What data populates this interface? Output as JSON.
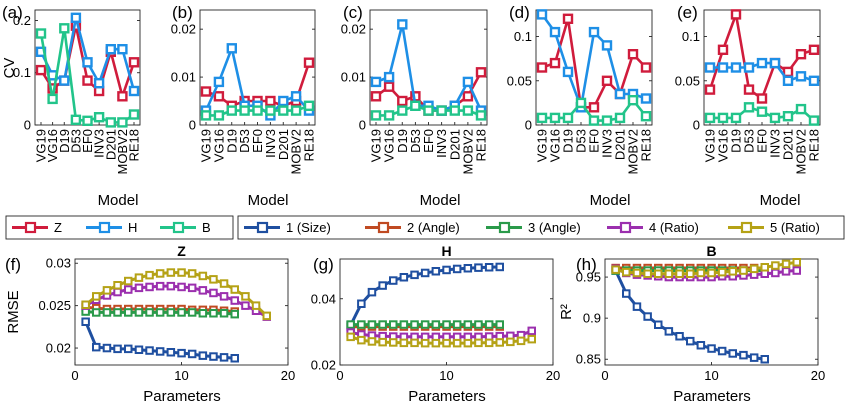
{
  "colors": {
    "Z": "#d01c3c",
    "H": "#1e8fe6",
    "B": "#22c48a",
    "s1": "#1f4fa0",
    "s2": "#c04a22",
    "s3": "#2a9a4a",
    "s4": "#9b2fae",
    "s5": "#b5a216"
  },
  "legends": {
    "top": [
      {
        "label": "Z",
        "color_key": "Z"
      },
      {
        "label": "H",
        "color_key": "H"
      },
      {
        "label": "B",
        "color_key": "B"
      }
    ],
    "bottom": [
      {
        "label": "1 (Size)",
        "color_key": "s1"
      },
      {
        "label": "2 (Angle)",
        "color_key": "s2"
      },
      {
        "label": "3 (Angle)",
        "color_key": "s3"
      },
      {
        "label": "4 (Ratio)",
        "color_key": "s4"
      },
      {
        "label": "5 (Ratio)",
        "color_key": "s5"
      }
    ]
  },
  "chart_data": [
    {
      "panel": "(a)",
      "type": "line",
      "title": "",
      "xlabel": "Model",
      "ylabel": "CV",
      "categories": [
        "VG19",
        "VG16",
        "D19",
        "D53",
        "EF0",
        "INV3",
        "D201",
        "MOBV2",
        "RE18"
      ],
      "ylim": [
        0,
        0.22
      ],
      "yticks": [
        0,
        0.1,
        0.2
      ],
      "ytick_labels": [
        "0",
        "0.1",
        "0.2"
      ],
      "series": [
        {
          "name": "Z",
          "color_key": "Z",
          "values": [
            0.105,
            0.07,
            0.085,
            0.19,
            0.085,
            0.065,
            0.14,
            0.055,
            0.12
          ]
        },
        {
          "name": "H",
          "color_key": "H",
          "values": [
            0.14,
            0.095,
            0.085,
            0.205,
            0.12,
            0.08,
            0.145,
            0.145,
            0.065
          ]
        },
        {
          "name": "B",
          "color_key": "B",
          "values": [
            0.175,
            0.05,
            0.185,
            0.01,
            0.008,
            0.015,
            0.005,
            0.005,
            0.02
          ]
        }
      ]
    },
    {
      "panel": "(b)",
      "type": "line",
      "title": "",
      "xlabel": "Model",
      "ylabel": "",
      "categories": [
        "VG19",
        "VG16",
        "D19",
        "D53",
        "EF0",
        "INV3",
        "D201",
        "MOBV2",
        "RE18"
      ],
      "ylim": [
        0,
        0.024
      ],
      "yticks": [
        0,
        0.01,
        0.02
      ],
      "ytick_labels": [
        "0",
        "0.01",
        "0.02"
      ],
      "series": [
        {
          "name": "Z",
          "color_key": "Z",
          "values": [
            0.007,
            0.006,
            0.004,
            0.005,
            0.005,
            0.005,
            0.004,
            0.005,
            0.013
          ]
        },
        {
          "name": "H",
          "color_key": "H",
          "values": [
            0.003,
            0.009,
            0.016,
            0.004,
            0.004,
            0.002,
            0.005,
            0.006,
            0.003
          ]
        },
        {
          "name": "B",
          "color_key": "B",
          "values": [
            0.002,
            0.002,
            0.003,
            0.003,
            0.003,
            0.003,
            0.003,
            0.003,
            0.004
          ]
        }
      ]
    },
    {
      "panel": "(c)",
      "type": "line",
      "title": "",
      "xlabel": "Model",
      "ylabel": "",
      "categories": [
        "VG19",
        "VG16",
        "D19",
        "D53",
        "EF0",
        "INV3",
        "D201",
        "MOBV2",
        "RE18"
      ],
      "ylim": [
        0,
        0.024
      ],
      "yticks": [
        0,
        0.01,
        0.02
      ],
      "ytick_labels": [
        "0",
        "0.01",
        "0.02"
      ],
      "series": [
        {
          "name": "Z",
          "color_key": "Z",
          "values": [
            0.006,
            0.008,
            0.005,
            0.006,
            0.003,
            0.003,
            0.004,
            0.006,
            0.011
          ]
        },
        {
          "name": "H",
          "color_key": "H",
          "values": [
            0.009,
            0.01,
            0.021,
            0.004,
            0.004,
            0.003,
            0.004,
            0.009,
            0.003
          ]
        },
        {
          "name": "B",
          "color_key": "B",
          "values": [
            0.002,
            0.002,
            0.003,
            0.004,
            0.003,
            0.003,
            0.003,
            0.003,
            0.002
          ]
        }
      ]
    },
    {
      "panel": "(d)",
      "type": "line",
      "title": "",
      "xlabel": "Model",
      "ylabel": "",
      "categories": [
        "VG19",
        "VG16",
        "D19",
        "D53",
        "EF0",
        "INV3",
        "D201",
        "MOBV2",
        "RE18"
      ],
      "ylim": [
        0,
        0.13
      ],
      "yticks": [
        0,
        0.05,
        0.1
      ],
      "ytick_labels": [
        "0",
        "0.05",
        "0.1"
      ],
      "series": [
        {
          "name": "Z",
          "color_key": "Z",
          "values": [
            0.065,
            0.07,
            0.12,
            0.02,
            0.02,
            0.05,
            0.035,
            0.08,
            0.065
          ]
        },
        {
          "name": "H",
          "color_key": "H",
          "values": [
            0.125,
            0.105,
            0.06,
            0.02,
            0.105,
            0.09,
            0.035,
            0.035,
            0.03
          ]
        },
        {
          "name": "B",
          "color_key": "B",
          "values": [
            0.008,
            0.008,
            0.008,
            0.025,
            0.005,
            0.005,
            0.008,
            0.028,
            0.01
          ]
        }
      ]
    },
    {
      "panel": "(e)",
      "type": "line",
      "title": "",
      "xlabel": "Model",
      "ylabel": "",
      "categories": [
        "VG19",
        "VG16",
        "D19",
        "D53",
        "EF0",
        "INV3",
        "D201",
        "MOBV2",
        "RE18"
      ],
      "ylim": [
        0,
        0.13
      ],
      "yticks": [
        0,
        0.05,
        0.1
      ],
      "ytick_labels": [
        "0",
        "0.05",
        "0.1"
      ],
      "series": [
        {
          "name": "Z",
          "color_key": "Z",
          "values": [
            0.04,
            0.085,
            0.125,
            0.04,
            0.03,
            0.07,
            0.06,
            0.08,
            0.085
          ]
        },
        {
          "name": "H",
          "color_key": "H",
          "values": [
            0.065,
            0.065,
            0.065,
            0.065,
            0.07,
            0.07,
            0.05,
            0.055,
            0.05
          ]
        },
        {
          "name": "B",
          "color_key": "B",
          "values": [
            0.008,
            0.008,
            0.008,
            0.02,
            0.015,
            0.008,
            0.01,
            0.018,
            0.005
          ]
        }
      ]
    },
    {
      "panel": "(f)",
      "type": "line",
      "title": "Z",
      "xlabel": "Parameters",
      "ylabel": "RMSE",
      "xlim": [
        0,
        20
      ],
      "xticks": [
        0,
        10,
        20
      ],
      "xtick_labels": [
        "0",
        "10",
        "20"
      ],
      "ylim": [
        0.018,
        0.0305
      ],
      "yticks": [
        0.02,
        0.025,
        0.03
      ],
      "ytick_labels": [
        "0.02",
        "0.025",
        "0.03"
      ],
      "series": [
        {
          "name": "1 (Size)",
          "color_key": "s1",
          "x": [
            1,
            2,
            3,
            4,
            5,
            6,
            7,
            8,
            9,
            10,
            11,
            12,
            13,
            14,
            15
          ],
          "values": [
            0.0231,
            0.0201,
            0.02,
            0.0199,
            0.0199,
            0.0198,
            0.0197,
            0.0196,
            0.0195,
            0.0194,
            0.0193,
            0.0191,
            0.019,
            0.0189,
            0.0188
          ]
        },
        {
          "name": "2 (Angle)",
          "color_key": "s2",
          "x": [
            1,
            2,
            3,
            4,
            5,
            6,
            7,
            8,
            9,
            10,
            11,
            12,
            13,
            14,
            15
          ],
          "values": [
            0.0248,
            0.0247,
            0.0246,
            0.0246,
            0.0246,
            0.0246,
            0.0246,
            0.0246,
            0.0246,
            0.0246,
            0.0245,
            0.0245,
            0.0245,
            0.0244,
            0.0243
          ]
        },
        {
          "name": "3 (Angle)",
          "color_key": "s3",
          "x": [
            1,
            2,
            3,
            4,
            5,
            6,
            7,
            8,
            9,
            10,
            11,
            12,
            13,
            14,
            15
          ],
          "values": [
            0.0243,
            0.0242,
            0.0242,
            0.0242,
            0.0242,
            0.0242,
            0.0242,
            0.0242,
            0.0242,
            0.0242,
            0.0242,
            0.0241,
            0.0241,
            0.0241,
            0.024
          ]
        },
        {
          "name": "4 (Ratio)",
          "color_key": "s4",
          "x": [
            1,
            2,
            3,
            4,
            5,
            6,
            7,
            8,
            9,
            10,
            11,
            12,
            13,
            14,
            15,
            16,
            17,
            18
          ],
          "values": [
            0.025,
            0.0257,
            0.0262,
            0.0266,
            0.0269,
            0.0271,
            0.0272,
            0.0273,
            0.0273,
            0.0272,
            0.0271,
            0.0268,
            0.0265,
            0.0261,
            0.0256,
            0.025,
            0.0244,
            0.0237
          ]
        },
        {
          "name": "5 (Ratio)",
          "color_key": "s5",
          "x": [
            1,
            2,
            3,
            4,
            5,
            6,
            7,
            8,
            9,
            10,
            11,
            12,
            13,
            14,
            15,
            16,
            17,
            18
          ],
          "values": [
            0.0251,
            0.0261,
            0.0268,
            0.0274,
            0.0279,
            0.0283,
            0.0286,
            0.0288,
            0.0289,
            0.0289,
            0.0288,
            0.0285,
            0.0281,
            0.0276,
            0.0269,
            0.0261,
            0.025,
            0.0238
          ]
        }
      ]
    },
    {
      "panel": "(g)",
      "type": "line",
      "title": "H",
      "xlabel": "Parameters",
      "ylabel": "",
      "xlim": [
        0,
        20
      ],
      "xticks": [
        0,
        10,
        20
      ],
      "xtick_labels": [
        "0",
        "10",
        "20"
      ],
      "ylim": [
        0.02,
        0.052
      ],
      "yticks": [
        0.02,
        0.04
      ],
      "ytick_labels": [
        "0.02",
        "0.04"
      ],
      "series": [
        {
          "name": "1 (Size)",
          "color_key": "s1",
          "x": [
            1,
            2,
            3,
            4,
            5,
            6,
            7,
            8,
            9,
            10,
            11,
            12,
            13,
            14,
            15
          ],
          "values": [
            0.032,
            0.0385,
            0.042,
            0.044,
            0.0455,
            0.0465,
            0.0472,
            0.0478,
            0.0483,
            0.0487,
            0.049,
            0.0492,
            0.0494,
            0.0495,
            0.0496
          ]
        },
        {
          "name": "2 (Angle)",
          "color_key": "s2",
          "x": [
            1,
            2,
            3,
            4,
            5,
            6,
            7,
            8,
            9,
            10,
            11,
            12,
            13,
            14,
            15
          ],
          "values": [
            0.0315,
            0.0316,
            0.0316,
            0.0316,
            0.0316,
            0.0316,
            0.0316,
            0.0316,
            0.0316,
            0.0316,
            0.0316,
            0.0316,
            0.0316,
            0.0316,
            0.0316
          ]
        },
        {
          "name": "3 (Angle)",
          "color_key": "s3",
          "x": [
            1,
            2,
            3,
            4,
            5,
            6,
            7,
            8,
            9,
            10,
            11,
            12,
            13,
            14,
            15
          ],
          "values": [
            0.0322,
            0.0322,
            0.0322,
            0.0322,
            0.0322,
            0.0322,
            0.0322,
            0.0322,
            0.0322,
            0.0322,
            0.0322,
            0.0322,
            0.0322,
            0.0322,
            0.0322
          ]
        },
        {
          "name": "4 (Ratio)",
          "color_key": "s4",
          "x": [
            1,
            2,
            3,
            4,
            5,
            6,
            7,
            8,
            9,
            10,
            11,
            12,
            13,
            14,
            15,
            16,
            17,
            18
          ],
          "values": [
            0.0298,
            0.0292,
            0.0289,
            0.0287,
            0.0286,
            0.0285,
            0.0285,
            0.0285,
            0.0285,
            0.0285,
            0.0285,
            0.0285,
            0.0285,
            0.0286,
            0.0287,
            0.0288,
            0.029,
            0.0303
          ]
        },
        {
          "name": "5 (Ratio)",
          "color_key": "s5",
          "x": [
            1,
            2,
            3,
            4,
            5,
            6,
            7,
            8,
            9,
            10,
            11,
            12,
            13,
            14,
            15,
            16,
            17,
            18
          ],
          "values": [
            0.0285,
            0.0275,
            0.0271,
            0.0269,
            0.0268,
            0.0267,
            0.0267,
            0.0266,
            0.0266,
            0.0266,
            0.0266,
            0.0266,
            0.0267,
            0.0267,
            0.0268,
            0.027,
            0.0273,
            0.0278
          ]
        }
      ]
    },
    {
      "panel": "(h)",
      "type": "line",
      "title": "B",
      "xlabel": "Parameters",
      "ylabel": "R²",
      "xlim": [
        0,
        20
      ],
      "xticks": [
        0,
        10,
        20
      ],
      "xtick_labels": [
        "0",
        "10",
        "20"
      ],
      "ylim": [
        0.843,
        0.972
      ],
      "yticks": [
        0.85,
        0.9,
        0.95
      ],
      "ytick_labels": [
        "0.85",
        "0.9",
        "0.95"
      ],
      "series": [
        {
          "name": "1 (Size)",
          "color_key": "s1",
          "x": [
            1,
            2,
            3,
            4,
            5,
            6,
            7,
            8,
            9,
            10,
            11,
            12,
            13,
            14,
            15
          ],
          "values": [
            0.958,
            0.93,
            0.914,
            0.902,
            0.892,
            0.884,
            0.878,
            0.872,
            0.867,
            0.863,
            0.86,
            0.857,
            0.855,
            0.852,
            0.85
          ]
        },
        {
          "name": "2 (Angle)",
          "color_key": "s2",
          "x": [
            1,
            2,
            3,
            4,
            5,
            6,
            7,
            8,
            9,
            10,
            11,
            12,
            13,
            14,
            15
          ],
          "values": [
            0.961,
            0.961,
            0.961,
            0.961,
            0.961,
            0.961,
            0.961,
            0.961,
            0.961,
            0.961,
            0.961,
            0.961,
            0.961,
            0.961,
            0.961
          ]
        },
        {
          "name": "3 (Angle)",
          "color_key": "s3",
          "x": [
            1,
            2,
            3,
            4,
            5,
            6,
            7,
            8,
            9,
            10,
            11,
            12,
            13,
            14,
            15
          ],
          "values": [
            0.958,
            0.958,
            0.958,
            0.958,
            0.958,
            0.958,
            0.958,
            0.958,
            0.958,
            0.958,
            0.958,
            0.958,
            0.958,
            0.958,
            0.958
          ]
        },
        {
          "name": "4 (Ratio)",
          "color_key": "s4",
          "x": [
            1,
            2,
            3,
            4,
            5,
            6,
            7,
            8,
            9,
            10,
            11,
            12,
            13,
            14,
            15,
            16,
            17,
            18
          ],
          "values": [
            0.96,
            0.955,
            0.953,
            0.952,
            0.951,
            0.95,
            0.95,
            0.95,
            0.95,
            0.95,
            0.951,
            0.951,
            0.952,
            0.953,
            0.954,
            0.955,
            0.957,
            0.958
          ]
        },
        {
          "name": "5 (Ratio)",
          "color_key": "s5",
          "x": [
            1,
            2,
            3,
            4,
            5,
            6,
            7,
            8,
            9,
            10,
            11,
            12,
            13,
            14,
            15,
            16,
            17,
            18
          ],
          "values": [
            0.959,
            0.956,
            0.955,
            0.954,
            0.954,
            0.954,
            0.954,
            0.954,
            0.955,
            0.955,
            0.956,
            0.957,
            0.958,
            0.96,
            0.962,
            0.964,
            0.966,
            0.968
          ]
        }
      ]
    }
  ]
}
